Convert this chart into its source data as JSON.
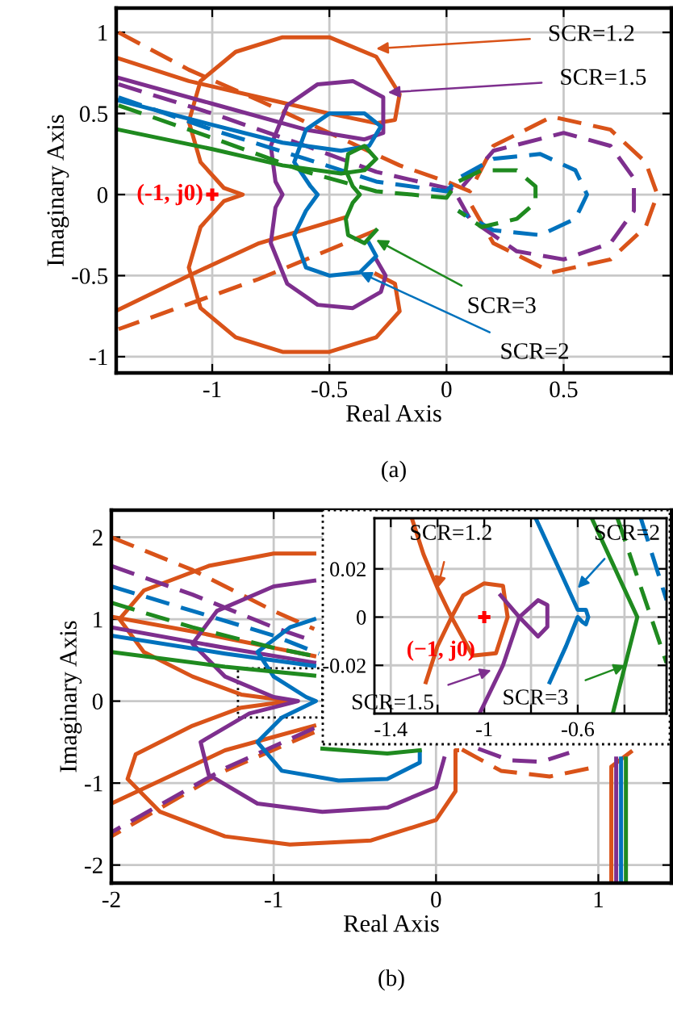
{
  "chart_data": [
    {
      "type": "line",
      "title": "(a)",
      "xlabel": "Real Axis",
      "ylabel": "Imaginary Axis",
      "xlim": [
        -1.41,
        0.96
      ],
      "ylim": [
        -1.1,
        1.15
      ],
      "xticks": [
        -1,
        -0.5,
        0,
        0.5
      ],
      "yticks": [
        -1,
        -0.5,
        0,
        0.5,
        1
      ],
      "grid": true,
      "series": [
        {
          "color": "#d95319",
          "line_style": "solid",
          "x": [
            -1.4,
            -1.1,
            -0.8,
            -0.5,
            -0.3,
            -0.22,
            -0.2,
            -0.3,
            -0.5,
            -0.7,
            -0.9,
            -1.05,
            -1.1,
            -1.05,
            -0.95,
            -0.87,
            -0.95,
            -1.05,
            -1.1,
            -1.05,
            -0.9,
            -0.7,
            -0.5,
            -0.3,
            -0.2,
            -0.22,
            -0.3,
            null,
            -0.43,
            -0.8,
            -1.1,
            -1.4
          ],
          "values": [
            0.84,
            0.7,
            0.6,
            0.5,
            0.44,
            0.46,
            0.62,
            0.85,
            0.97,
            0.97,
            0.88,
            0.7,
            0.45,
            0.2,
            0.04,
            0,
            -0.04,
            -0.2,
            -0.45,
            -0.7,
            -0.88,
            -0.97,
            -0.97,
            -0.88,
            -0.72,
            -0.55,
            -0.49,
            null,
            -0.14,
            -0.3,
            -0.5,
            -0.71
          ]
        },
        {
          "color": "#d95319",
          "line_style": "dashed",
          "x": [
            -1.4,
            -1.1,
            -0.8,
            -0.5,
            -0.2,
            0,
            0.1,
            0.2,
            0.45,
            0.7,
            0.85,
            0.9,
            0.85,
            0.7,
            0.45,
            0.2,
            0.1,
            null,
            -0.3,
            -0.8,
            -1.4
          ],
          "values": [
            1.0,
            0.77,
            0.58,
            0.38,
            0.18,
            0.08,
            0.02,
            0.3,
            0.48,
            0.4,
            0.2,
            0,
            -0.2,
            -0.4,
            -0.48,
            -0.3,
            -0.05,
            null,
            -0.22,
            -0.52,
            -0.83
          ]
        },
        {
          "color": "#7e2f8e",
          "line_style": "solid",
          "x": [
            -1.4,
            -1.0,
            -0.6,
            -0.35,
            -0.27,
            -0.27,
            -0.4,
            -0.55,
            -0.68,
            -0.75,
            -0.73,
            -0.7,
            -0.73,
            -0.75,
            -0.68,
            -0.55,
            -0.4,
            -0.28,
            -0.26,
            -0.3
          ],
          "values": [
            0.72,
            0.56,
            0.4,
            0.34,
            0.38,
            0.6,
            0.7,
            0.68,
            0.55,
            0.3,
            0.08,
            0,
            -0.08,
            -0.3,
            -0.55,
            -0.68,
            -0.7,
            -0.6,
            -0.5,
            -0.4
          ]
        },
        {
          "color": "#7e2f8e",
          "line_style": "dashed",
          "x": [
            -1.4,
            -1.0,
            -0.6,
            -0.3,
            0,
            0.05,
            0.2,
            0.5,
            0.7,
            0.8,
            0.8,
            0.7,
            0.5,
            0.3,
            0.1,
            0.05
          ],
          "values": [
            0.68,
            0.5,
            0.3,
            0.14,
            0.04,
            0.02,
            0.27,
            0.38,
            0.3,
            0.1,
            -0.1,
            -0.3,
            -0.4,
            -0.35,
            -0.15,
            -0.02
          ]
        },
        {
          "color": "#0072bd",
          "line_style": "solid",
          "x": [
            -1.4,
            -1.0,
            -0.7,
            -0.45,
            -0.33,
            -0.28,
            -0.35,
            -0.5,
            -0.6,
            -0.65,
            -0.58,
            -0.55,
            -0.6,
            -0.65,
            -0.6,
            -0.5,
            -0.37,
            -0.3,
            -0.33
          ],
          "values": [
            0.58,
            0.43,
            0.32,
            0.27,
            0.3,
            0.42,
            0.5,
            0.5,
            0.4,
            0.2,
            0.05,
            0,
            -0.1,
            -0.25,
            -0.45,
            -0.5,
            -0.48,
            -0.38,
            -0.3
          ]
        },
        {
          "color": "#0072bd",
          "line_style": "dashed",
          "x": [
            -1.4,
            -1.0,
            -0.6,
            -0.3,
            0,
            0.05,
            0.2,
            0.4,
            0.55,
            0.6,
            0.55,
            0.4,
            0.2,
            0.05
          ],
          "values": [
            0.6,
            0.4,
            0.22,
            0.08,
            0.02,
            0.1,
            0.22,
            0.25,
            0.15,
            0,
            -0.15,
            -0.25,
            -0.22,
            -0.1
          ]
        },
        {
          "color": "#1f8a1f",
          "line_style": "solid",
          "x": [
            -1.4,
            -1.0,
            -0.7,
            -0.45,
            -0.35,
            -0.3,
            -0.35,
            -0.42,
            -0.43,
            -0.4,
            -0.37,
            -0.4,
            -0.43,
            -0.42,
            -0.35,
            -0.3
          ],
          "values": [
            0.4,
            0.28,
            0.18,
            0.13,
            0.15,
            0.22,
            0.3,
            0.25,
            0.15,
            0.05,
            0,
            -0.05,
            -0.15,
            -0.25,
            -0.3,
            -0.22
          ]
        },
        {
          "color": "#1f8a1f",
          "line_style": "dashed",
          "x": [
            -1.4,
            -1.0,
            -0.6,
            -0.3,
            0,
            0.05,
            0.15,
            0.3,
            0.38,
            0.38,
            0.3,
            0.15,
            0.05
          ],
          "values": [
            0.55,
            0.35,
            0.14,
            0.02,
            -0.02,
            0.08,
            0.15,
            0.15,
            0.05,
            -0.05,
            -0.15,
            -0.2,
            -0.1
          ]
        },
        {
          "type": "scatter",
          "color": "#ff0000",
          "marker": "cross",
          "x": [
            -1
          ],
          "values": [
            0
          ]
        }
      ],
      "annotations": [
        {
          "text": "SCR=1.2",
          "x": -0.3,
          "y": 0.9
        },
        {
          "text": "SCR=1.5",
          "x": -0.25,
          "y": 0.63
        },
        {
          "text": "SCR=3",
          "x": -0.3,
          "y": -0.28
        },
        {
          "text": "SCR=2",
          "x": -0.37,
          "y": -0.48
        },
        {
          "text": "(-1, j0)",
          "x": -1,
          "y": 0
        }
      ]
    },
    {
      "type": "line",
      "title": "(b)",
      "xlabel": "Real Axis",
      "ylabel": "Imaginary Axis",
      "xlim": [
        -2,
        1.45
      ],
      "ylim": [
        -2.22,
        2.33
      ],
      "xticks": [
        -2,
        -1,
        0,
        1
      ],
      "yticks": [
        -2,
        -1,
        0,
        1,
        2
      ],
      "grid": true,
      "series": [
        {
          "color": "#d95319",
          "line_style": "solid",
          "x": [
            -2,
            -1.5,
            -1.0,
            -0.75,
            null,
            -0.75,
            -1.0,
            -1.4,
            -1.8,
            -1.95,
            -1.8,
            -1.5,
            -1.2,
            -0.9,
            -1.2,
            -1.5,
            -1.85,
            -1.9,
            -1.7,
            -1.3,
            -0.9,
            -0.4,
            0,
            0.12,
            0.12,
            0.13,
            null,
            -0.75,
            -1.3,
            -2,
            null,
            1.08,
            1.08,
            1.2
          ],
          "values": [
            1.03,
            0.85,
            0.65,
            0.55,
            null,
            1.8,
            1.8,
            1.65,
            1.35,
            1.0,
            0.6,
            0.3,
            0.08,
            0,
            -0.08,
            -0.3,
            -0.65,
            -0.95,
            -1.35,
            -1.65,
            -1.75,
            -1.7,
            -1.45,
            -1.1,
            -0.6,
            -0.6,
            null,
            -0.3,
            -0.6,
            -1.25,
            null,
            -2.22,
            -0.8,
            -0.62
          ]
        },
        {
          "color": "#d95319",
          "line_style": "dashed",
          "x": [
            -2,
            -1.5,
            -1.0,
            -0.75,
            null,
            0.16,
            0.4,
            0.7,
            0.99,
            null,
            -0.75,
            -1.3,
            -2
          ],
          "values": [
            2.0,
            1.6,
            1.1,
            0.88,
            null,
            -0.59,
            -0.85,
            -0.92,
            -0.8,
            null,
            -0.38,
            -0.85,
            -1.65
          ]
        },
        {
          "color": "#7e2f8e",
          "line_style": "solid",
          "x": [
            -2,
            -1.3,
            -0.75,
            null,
            -0.75,
            -1.0,
            -1.35,
            -1.5,
            -1.3,
            -1.0,
            -0.85,
            -1.15,
            -1.45,
            -1.4,
            -1.1,
            -0.7,
            -0.3,
            0,
            0.05,
            null,
            1.11,
            1.11
          ],
          "values": [
            0.9,
            0.65,
            0.47,
            null,
            1.47,
            1.4,
            1.1,
            0.7,
            0.3,
            0.05,
            0,
            -0.15,
            -0.5,
            -0.9,
            -1.25,
            -1.35,
            -1.3,
            -1.05,
            -0.7,
            null,
            -2.22,
            -0.7
          ]
        },
        {
          "color": "#7e2f8e",
          "line_style": "dashed",
          "x": [
            -2,
            -1.5,
            -1.0,
            -0.75,
            null,
            0.26,
            0.45,
            0.65,
            0.82,
            null,
            -0.75,
            -1.3,
            -2
          ],
          "values": [
            1.65,
            1.3,
            0.9,
            0.73,
            null,
            -0.58,
            -0.72,
            -0.74,
            -0.63,
            null,
            -0.33,
            -0.82,
            -1.6
          ]
        },
        {
          "color": "#0072bd",
          "line_style": "solid",
          "x": [
            -2,
            -1.3,
            -0.75,
            null,
            -0.75,
            -0.9,
            -1.1,
            -1.0,
            -0.8,
            -0.74,
            -0.95,
            -1.1,
            -0.95,
            -0.6,
            -0.3,
            -0.1,
            -0.1,
            null,
            1.14,
            1.14
          ],
          "values": [
            0.8,
            0.58,
            0.43,
            null,
            1.0,
            0.9,
            0.6,
            0.3,
            0.05,
            0,
            -0.2,
            -0.5,
            -0.85,
            -0.97,
            -0.95,
            -0.75,
            -0.62,
            null,
            -2.22,
            -0.7
          ]
        },
        {
          "color": "#0072bd",
          "line_style": "dashed",
          "x": [
            -2,
            -1.5,
            -1.0,
            -0.72
          ],
          "values": [
            1.4,
            1.1,
            0.8,
            0.58
          ]
        },
        {
          "color": "#1f8a1f",
          "line_style": "solid",
          "x": [
            -2,
            -1.3,
            -0.75,
            null,
            -0.7,
            -0.3,
            -0.1,
            null,
            1.17,
            1.17
          ],
          "values": [
            0.6,
            0.42,
            0.31,
            null,
            -0.58,
            -0.64,
            -0.6,
            null,
            -2.22,
            -0.7
          ]
        },
        {
          "color": "#1f8a1f",
          "line_style": "dashed",
          "x": [
            -2,
            -1.5,
            -1.0,
            -0.75
          ],
          "values": [
            1.2,
            0.9,
            0.65,
            0.55
          ]
        }
      ]
    },
    {
      "type": "line",
      "xlim": [
        -1.47,
        -0.22
      ],
      "ylim": [
        -0.04,
        0.041
      ],
      "xticks": [
        -1.4,
        {
          "value": -1.2,
          "label": null
        },
        -1,
        {
          "value": -0.8,
          "label": null
        },
        -0.6,
        {
          "value": -0.4,
          "label": null
        }
      ],
      "yticks": [
        -0.02,
        0,
        0.02
      ],
      "grid": true,
      "series": [
        {
          "color": "#d95319",
          "line_style": "solid",
          "x": [
            -1.31,
            -1.26,
            -1.2,
            -1.14,
            -1.05,
            -0.95,
            -0.9,
            -0.92,
            -1.0,
            -1.09,
            -1.14,
            -1.2,
            -1.25
          ],
          "values": [
            0.041,
            0.026,
            0.012,
            0,
            -0.016,
            -0.015,
            0,
            0.013,
            0.014,
            0.009,
            0,
            -0.012,
            -0.027
          ]
        },
        {
          "color": "#7e2f8e",
          "line_style": "solid",
          "x": [
            -0.93,
            -0.85,
            -0.77,
            -0.73,
            -0.73,
            -0.77,
            -0.85,
            -0.92,
            -1.02
          ],
          "values": [
            0.009,
            0,
            0.007,
            0.005,
            -0.004,
            -0.008,
            0,
            -0.02,
            -0.04
          ]
        },
        {
          "color": "#0072bd",
          "line_style": "solid",
          "x": [
            -0.78,
            -0.68,
            -0.6,
            -0.565,
            -0.555,
            -0.565,
            -0.58,
            -0.6,
            -0.65,
            -0.72
          ],
          "values": [
            0.041,
            0.02,
            0.003,
            0.003,
            0,
            -0.003,
            -0.002,
            0,
            -0.012,
            -0.027
          ]
        },
        {
          "color": "#0072bd",
          "line_style": "dashed",
          "x": [
            -0.33,
            -0.22
          ],
          "values": [
            0.041,
            0.007
          ]
        },
        {
          "color": "#1f8a1f",
          "line_style": "solid",
          "x": [
            -0.54,
            -0.345,
            -0.45
          ],
          "values": [
            0.041,
            0,
            -0.04
          ]
        },
        {
          "color": "#1f8a1f",
          "line_style": "dashed",
          "x": [
            -0.43,
            -0.22
          ],
          "values": [
            0.041,
            -0.019
          ]
        },
        {
          "type": "scatter",
          "color": "#ff0000",
          "marker": "cross",
          "x": [
            -1
          ],
          "values": [
            0
          ]
        }
      ],
      "annotations": [
        {
          "text": "SCR=1.2",
          "x": -1.2,
          "y": 0.012
        },
        {
          "text": "SCR=2",
          "x": -0.6,
          "y": 0.012
        },
        {
          "text": "SCR=1.5",
          "x": -0.97,
          "y": -0.022
        },
        {
          "text": "SCR=3",
          "x": -0.3975,
          "y": -0.02
        },
        {
          "text": "(−1, j0)",
          "x": -1,
          "y": 0
        }
      ]
    }
  ]
}
